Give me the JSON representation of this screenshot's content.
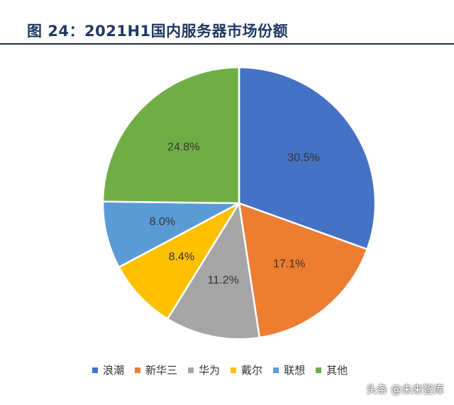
{
  "title": "图 24：2021H1国内服务器市场份额",
  "chart_data": {
    "type": "pie",
    "categories": [
      "浪潮",
      "新华三",
      "华为",
      "戴尔",
      "联想",
      "其他"
    ],
    "values": [
      30.5,
      17.1,
      11.2,
      8.4,
      8.0,
      24.8
    ],
    "data_labels": [
      "30.5%",
      "17.1%",
      "11.2%",
      "8.4%",
      "8.0%",
      "24.8%"
    ],
    "colors": [
      "#4472c4",
      "#ed7d31",
      "#a5a5a5",
      "#ffc000",
      "#5b9bd5",
      "#70ad47"
    ],
    "legend_position": "bottom"
  },
  "watermark": "头条 @未来智库"
}
